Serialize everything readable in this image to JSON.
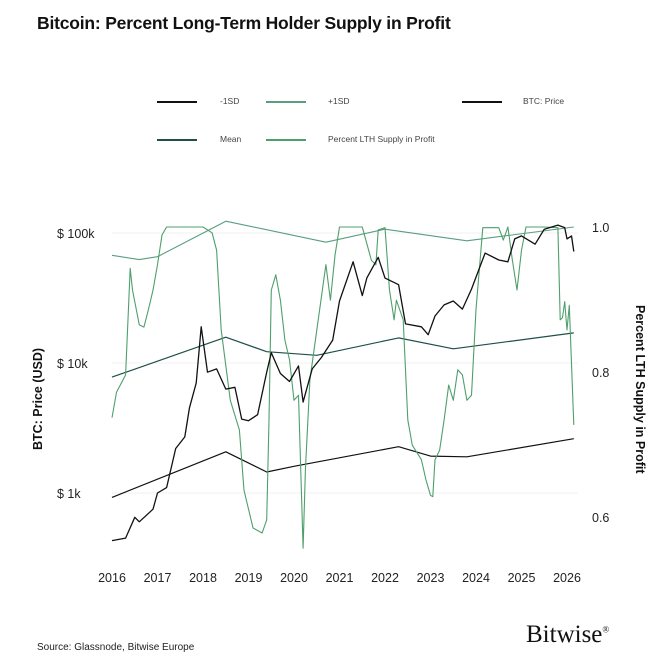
{
  "title": "Bitcoin: Percent Long-Term Holder Supply in Profit",
  "source": "Source: Glassnode, Bitwise Europe",
  "logo": "Bitwise®",
  "colors": {
    "price": "#111111",
    "mean": "#1f4f4a",
    "minus_sd": "#111111",
    "plus_sd": "#5a9e82",
    "lth": "#4f9f6c"
  },
  "chart_data": {
    "type": "line",
    "title": "Bitcoin: Percent Long-Term Holder Supply in Profit",
    "xlabel": "",
    "ylabel": "BTC: Price (USD)",
    "y2label": "Percent LTH Supply in Profit",
    "xlim": [
      2016,
      2026.2
    ],
    "ylim": [
      300,
      150000
    ],
    "yscale": "log",
    "y2lim": [
      0.55,
      1.01
    ],
    "grid": true,
    "legend_position": "top",
    "x_ticks": [
      "2016",
      "2017",
      "2018",
      "2019",
      "2020",
      "2021",
      "2022",
      "2023",
      "2024",
      "2025",
      "2026"
    ],
    "y_ticks": [
      {
        "value": 100000,
        "label": "$ 100k"
      },
      {
        "value": 10000,
        "label": "$ 10k"
      },
      {
        "value": 1000,
        "label": "$  1k"
      }
    ],
    "y2_ticks": [
      {
        "value": 1.0,
        "label": "1.0"
      },
      {
        "value": 0.8,
        "label": "0.8"
      },
      {
        "value": 0.6,
        "label": "0.6"
      }
    ],
    "series": [
      {
        "name": "-1SD",
        "axis": "right",
        "color": "#111111",
        "x": [
          2016,
          2018.5,
          2019.4,
          2020,
          2022.3,
          2023,
          2023.8,
          2026.15
        ],
        "y": [
          0.627,
          0.69,
          0.662,
          0.67,
          0.697,
          0.684,
          0.683,
          0.708
        ]
      },
      {
        "name": "+1SD",
        "axis": "right",
        "color": "#5a9e82",
        "x": [
          2016,
          2016.6,
          2017,
          2018.5,
          2020.7,
          2022,
          2023.8,
          2026.15
        ],
        "y": [
          0.961,
          0.955,
          0.959,
          1.008,
          0.979,
          0.997,
          0.981,
          1.0
        ]
      },
      {
        "name": "BTC: Price",
        "axis": "left",
        "color": "#111111",
        "x": [
          2016.0,
          2016.3,
          2016.5,
          2016.6,
          2016.9,
          2017.0,
          2017.2,
          2017.4,
          2017.6,
          2017.7,
          2017.85,
          2017.96,
          2018.1,
          2018.3,
          2018.5,
          2018.7,
          2018.85,
          2019.0,
          2019.2,
          2019.4,
          2019.5,
          2019.7,
          2019.9,
          2020.1,
          2020.2,
          2020.4,
          2020.6,
          2020.85,
          2021.0,
          2021.3,
          2021.5,
          2021.6,
          2021.85,
          2022.0,
          2022.3,
          2022.45,
          2022.8,
          2022.95,
          2023.1,
          2023.3,
          2023.5,
          2023.7,
          2023.9,
          2024.2,
          2024.5,
          2024.7,
          2024.85,
          2025.0,
          2025.3,
          2025.5,
          2025.8,
          2025.95,
          2026.0,
          2026.1,
          2026.15
        ],
        "y": [
          430,
          450,
          650,
          600,
          750,
          1000,
          1100,
          2200,
          2700,
          4500,
          7000,
          19000,
          8500,
          9000,
          6300,
          6500,
          3700,
          3600,
          4000,
          8500,
          12000,
          8300,
          7200,
          9500,
          5000,
          9000,
          11000,
          15000,
          30000,
          60000,
          33000,
          45000,
          65000,
          45000,
          40000,
          20000,
          19000,
          16500,
          23000,
          28000,
          30000,
          26000,
          37000,
          70000,
          62000,
          60000,
          90000,
          95000,
          82000,
          107000,
          115000,
          110000,
          90000,
          95000,
          72000
        ]
      },
      {
        "name": "Mean",
        "axis": "right",
        "color": "#1f4f4a",
        "x": [
          2016,
          2018.5,
          2019.4,
          2020.5,
          2022.3,
          2023.5,
          2026.15
        ],
        "y": [
          0.793,
          0.848,
          0.828,
          0.823,
          0.847,
          0.832,
          0.854
        ]
      },
      {
        "name": "Percent LTH Supply in Profit",
        "axis": "right",
        "color": "#4f9f6c",
        "x": [
          2016.0,
          2016.1,
          2016.3,
          2016.4,
          2016.45,
          2016.6,
          2016.7,
          2016.8,
          2016.9,
          2017.0,
          2017.1,
          2017.2,
          2018.0,
          2018.2,
          2018.3,
          2018.4,
          2018.6,
          2018.8,
          2018.9,
          2019.1,
          2019.3,
          2019.4,
          2019.45,
          2019.5,
          2019.6,
          2019.7,
          2019.8,
          2019.9,
          2020.0,
          2020.1,
          2020.2,
          2020.25,
          2020.35,
          2020.5,
          2020.7,
          2020.8,
          2020.9,
          2021.0,
          2021.5,
          2021.7,
          2021.8,
          2021.85,
          2022.0,
          2022.1,
          2022.2,
          2022.25,
          2022.4,
          2022.5,
          2022.6,
          2022.8,
          2022.9,
          2023.0,
          2023.05,
          2023.1,
          2023.2,
          2023.3,
          2023.4,
          2023.5,
          2023.6,
          2023.7,
          2023.8,
          2023.9,
          2024.0,
          2024.1,
          2024.15,
          2024.5,
          2024.6,
          2024.7,
          2024.8,
          2024.9,
          2025.0,
          2025.1,
          2025.5,
          2025.8,
          2025.85,
          2025.9,
          2025.95,
          2026.0,
          2026.05,
          2026.15
        ],
        "y": [
          0.737,
          0.772,
          0.796,
          0.943,
          0.913,
          0.865,
          0.862,
          0.886,
          0.913,
          0.948,
          0.989,
          1.0,
          1.0,
          0.992,
          0.968,
          0.858,
          0.761,
          0.72,
          0.637,
          0.585,
          0.578,
          0.596,
          0.734,
          0.913,
          0.934,
          0.899,
          0.844,
          0.817,
          0.761,
          0.768,
          0.557,
          0.665,
          0.789,
          0.858,
          0.948,
          0.899,
          0.961,
          1.0,
          1.0,
          0.954,
          0.948,
          0.996,
          0.999,
          0.913,
          0.872,
          0.899,
          0.872,
          0.734,
          0.699,
          0.679,
          0.651,
          0.63,
          0.628,
          0.679,
          0.692,
          0.734,
          0.782,
          0.761,
          0.803,
          0.796,
          0.761,
          0.768,
          0.886,
          0.961,
          0.999,
          0.999,
          0.982,
          1.0,
          0.954,
          0.913,
          0.968,
          1.0,
          1.0,
          0.999,
          0.872,
          0.875,
          0.897,
          0.858,
          0.892,
          0.727
        ]
      }
    ]
  }
}
